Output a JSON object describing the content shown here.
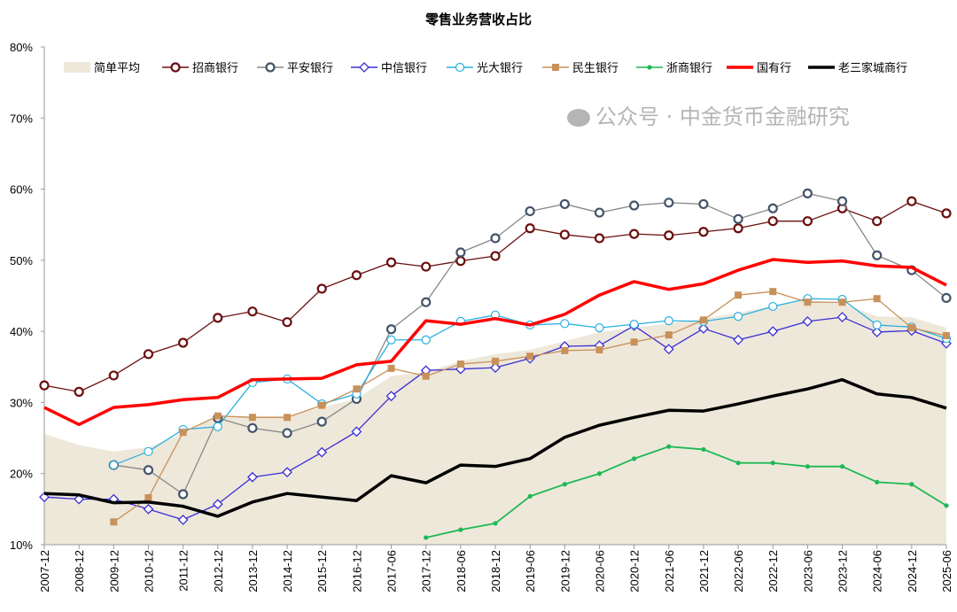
{
  "chart_data": {
    "type": "line",
    "title": "零售业务营收占比",
    "xlabel": "",
    "ylabel": "",
    "ylim": [
      10,
      80
    ],
    "yticks": [
      "10%",
      "20%",
      "30%",
      "40%",
      "50%",
      "60%",
      "70%",
      "80%"
    ],
    "ytick_values": [
      10,
      20,
      30,
      40,
      50,
      60,
      70,
      80
    ],
    "grid": false,
    "legend_position": "top",
    "categories": [
      "2007-12",
      "2008-12",
      "2009-12",
      "2010-12",
      "2011-12",
      "2012-12",
      "2013-12",
      "2014-12",
      "2015-12",
      "2016-12",
      "2017-06",
      "2017-12",
      "2018-06",
      "2018-12",
      "2019-06",
      "2019-12",
      "2020-06",
      "2020-12",
      "2021-06",
      "2021-12",
      "2022-06",
      "2022-12",
      "2023-06",
      "2023-12",
      "2024-06",
      "2024-12",
      "2025-06"
    ],
    "series": [
      {
        "name": "简单平均",
        "style": "area",
        "color": "#EEE8DA",
        "values": [
          25.6,
          24.0,
          23.1,
          23.7,
          25.6,
          28.1,
          28.1,
          28.1,
          29.3,
          30.5,
          33.7,
          34.3,
          35.8,
          36.8,
          37.4,
          38.6,
          39.9,
          40.5,
          41.1,
          41.8,
          42.6,
          43.6,
          44.5,
          43.9,
          42.1,
          42.0,
          40.5
        ]
      },
      {
        "name": "招商银行",
        "style": "circle",
        "color": "#6B0F0F",
        "values": [
          32.4,
          31.5,
          33.8,
          36.8,
          38.4,
          41.9,
          42.8,
          41.3,
          46.0,
          47.9,
          49.7,
          49.1,
          49.9,
          50.6,
          54.5,
          53.6,
          53.1,
          53.7,
          53.5,
          54.0,
          54.5,
          55.5,
          55.5,
          57.3,
          55.5,
          58.3,
          56.6
        ]
      },
      {
        "name": "平安银行",
        "style": "circle",
        "color": "#44546A",
        "values": [
          null,
          null,
          21.2,
          20.5,
          17.1,
          27.8,
          26.4,
          25.7,
          27.3,
          30.5,
          40.3,
          44.1,
          51.1,
          53.1,
          56.9,
          57.9,
          56.7,
          57.7,
          58.1,
          57.9,
          55.8,
          57.3,
          59.4,
          58.3,
          50.7,
          48.6,
          44.7
        ]
      },
      {
        "name": "中信银行",
        "style": "diamond",
        "color": "#3A2FD6",
        "values": [
          16.7,
          16.4,
          16.4,
          15.0,
          13.5,
          15.7,
          19.5,
          20.2,
          23.0,
          25.9,
          30.9,
          34.5,
          34.7,
          34.9,
          36.2,
          37.9,
          38.0,
          40.8,
          37.5,
          40.4,
          38.8,
          40.0,
          41.4,
          42.0,
          39.9,
          40.1,
          38.3
        ]
      },
      {
        "name": "光大银行",
        "style": "opencircle",
        "color": "#2AB0E0",
        "values": [
          null,
          null,
          21.2,
          23.1,
          26.2,
          26.6,
          32.8,
          33.3,
          29.8,
          31.2,
          38.8,
          38.8,
          41.4,
          42.3,
          40.9,
          41.1,
          40.5,
          41.0,
          41.5,
          41.4,
          42.1,
          43.5,
          44.6,
          44.5,
          40.9,
          40.6,
          39.0
        ]
      },
      {
        "name": "民生银行",
        "style": "square",
        "color": "#C8915A",
        "values": [
          null,
          null,
          13.2,
          16.6,
          25.8,
          28.1,
          27.9,
          27.9,
          29.6,
          31.9,
          34.8,
          33.7,
          35.4,
          35.8,
          36.5,
          37.3,
          37.4,
          38.5,
          39.5,
          41.6,
          45.1,
          45.6,
          44.1,
          44.1,
          44.6,
          40.5,
          39.4
        ]
      },
      {
        "name": "浙商银行",
        "style": "dot",
        "color": "#1DB954",
        "values": [
          null,
          null,
          null,
          null,
          null,
          null,
          null,
          null,
          null,
          null,
          null,
          11.0,
          12.1,
          13.0,
          16.8,
          18.5,
          20.0,
          22.1,
          23.8,
          23.4,
          21.5,
          21.5,
          21.0,
          21.0,
          18.8,
          18.5,
          15.5
        ]
      },
      {
        "name": "国有行",
        "style": "thick",
        "color": "#FF0000",
        "values": [
          29.3,
          26.9,
          29.3,
          29.7,
          30.4,
          30.7,
          33.2,
          33.3,
          33.4,
          35.3,
          35.8,
          41.5,
          41.0,
          41.8,
          40.9,
          42.4,
          45.1,
          47.0,
          45.9,
          46.7,
          48.6,
          50.1,
          49.7,
          49.9,
          49.2,
          49.0,
          46.5
        ]
      },
      {
        "name": "老三家城商行",
        "style": "thick",
        "color": "#000000",
        "values": [
          17.2,
          17.0,
          15.9,
          16.0,
          15.4,
          14.0,
          16.0,
          17.2,
          16.7,
          16.2,
          19.7,
          18.7,
          21.2,
          21.0,
          22.1,
          25.1,
          26.8,
          27.9,
          28.9,
          28.8,
          29.8,
          30.9,
          31.9,
          33.2,
          31.2,
          30.7,
          29.2
        ]
      }
    ]
  },
  "watermark": "公众号 · 中金货币金融研究"
}
